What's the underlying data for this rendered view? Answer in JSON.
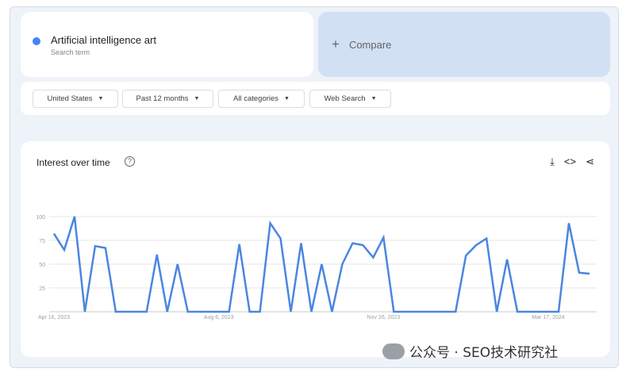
{
  "search_term": {
    "name": "Artificial intelligence art",
    "label": "Search term",
    "color": "#4285f4"
  },
  "compare": {
    "icon": "plus-icon",
    "label": "Compare"
  },
  "filters": [
    {
      "label": "United States"
    },
    {
      "label": "Past 12 months"
    },
    {
      "label": "All categories"
    },
    {
      "label": "Web Search"
    }
  ],
  "card": {
    "title": "Interest over time",
    "icons": [
      "help-icon",
      "download-icon",
      "embed-icon",
      "share-icon"
    ]
  },
  "watermark": "公众号 · SEO技术研究社",
  "chart_data": {
    "type": "line",
    "title": "Interest over time",
    "x_start": "Apr 16, 2023",
    "x_interval": "weekly",
    "x_tick_labels": [
      {
        "index": 0,
        "label": "Apr 16, 2023"
      },
      {
        "index": 16,
        "label": "Aug 6, 2023"
      },
      {
        "index": 32,
        "label": "Nov 26, 2023"
      },
      {
        "index": 48,
        "label": "Mar 17, 2024"
      }
    ],
    "y_ticks": [
      25,
      50,
      75,
      100
    ],
    "ylim": [
      0,
      100
    ],
    "grid": true,
    "color": "#4a86e0",
    "values": [
      82,
      65,
      100,
      0,
      69,
      67,
      0,
      0,
      0,
      0,
      60,
      0,
      50,
      0,
      0,
      0,
      0,
      0,
      71,
      0,
      0,
      93,
      77,
      0,
      72,
      0,
      50,
      0,
      50,
      72,
      70,
      57,
      78,
      0,
      0,
      0,
      0,
      0,
      0,
      0,
      59,
      70,
      77,
      0,
      55,
      0,
      0,
      0,
      0,
      0,
      93,
      41,
      40
    ]
  }
}
